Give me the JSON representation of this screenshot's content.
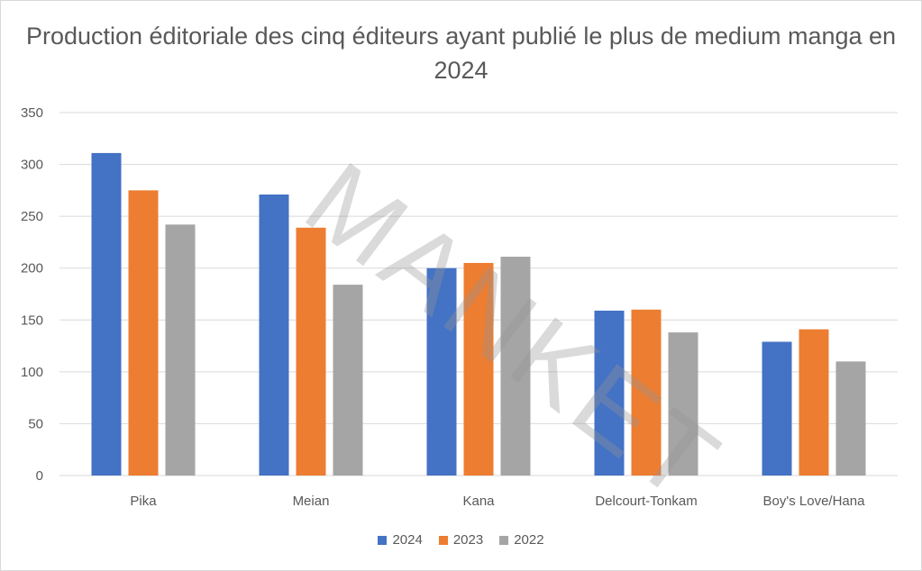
{
  "chart_data": {
    "type": "bar",
    "title": "Production éditoriale des cinq éditeurs ayant publié le plus de medium manga en 2024",
    "categories": [
      "Pika",
      "Meian",
      "Kana",
      "Delcourt-Tonkam",
      "Boy's Love/Hana"
    ],
    "series": [
      {
        "name": "2024",
        "color": "#4472c4",
        "values": [
          311,
          271,
          200,
          159,
          129
        ]
      },
      {
        "name": "2023",
        "color": "#ed7d31",
        "values": [
          275,
          239,
          205,
          160,
          141
        ]
      },
      {
        "name": "2022",
        "color": "#a5a5a5",
        "values": [
          242,
          184,
          211,
          138,
          110
        ]
      }
    ],
    "ylim": [
      0,
      350
    ],
    "yticks": [
      0,
      50,
      100,
      150,
      200,
      250,
      300,
      350
    ],
    "grid": true,
    "legend": "bottom",
    "xlabel": "",
    "ylabel": "",
    "watermark": "MANKET"
  }
}
